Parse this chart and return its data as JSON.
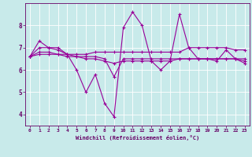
{
  "xlabel": "Windchill (Refroidissement éolien,°C)",
  "bg_color": "#c8eaea",
  "grid_color": "#ffffff",
  "line_color": "#990099",
  "marker_color": "#990099",
  "xlim": [
    -0.5,
    23.5
  ],
  "ylim": [
    3.5,
    9.0
  ],
  "yticks": [
    4,
    5,
    6,
    7,
    8
  ],
  "xticks": [
    0,
    1,
    2,
    3,
    4,
    5,
    6,
    7,
    8,
    9,
    10,
    11,
    12,
    13,
    14,
    15,
    16,
    17,
    18,
    19,
    20,
    21,
    22,
    23
  ],
  "series": [
    [
      6.6,
      7.3,
      7.0,
      7.0,
      6.7,
      6.0,
      5.0,
      5.8,
      4.5,
      3.9,
      7.9,
      8.6,
      8.0,
      6.4,
      6.0,
      6.4,
      8.5,
      7.0,
      6.5,
      6.5,
      6.4,
      6.9,
      6.5,
      6.3
    ],
    [
      6.6,
      7.0,
      7.0,
      6.9,
      6.7,
      6.6,
      6.6,
      6.6,
      6.5,
      5.7,
      6.5,
      6.5,
      6.5,
      6.5,
      6.5,
      6.5,
      6.5,
      6.5,
      6.5,
      6.5,
      6.5,
      6.5,
      6.5,
      6.5
    ],
    [
      6.6,
      6.8,
      6.8,
      6.7,
      6.6,
      6.6,
      6.5,
      6.5,
      6.4,
      6.3,
      6.4,
      6.4,
      6.4,
      6.4,
      6.4,
      6.4,
      6.5,
      6.5,
      6.5,
      6.5,
      6.5,
      6.5,
      6.5,
      6.4
    ],
    [
      6.6,
      6.7,
      6.7,
      6.7,
      6.7,
      6.7,
      6.7,
      6.8,
      6.8,
      6.8,
      6.8,
      6.8,
      6.8,
      6.8,
      6.8,
      6.8,
      6.8,
      7.0,
      7.0,
      7.0,
      7.0,
      7.0,
      6.9,
      6.9
    ]
  ]
}
